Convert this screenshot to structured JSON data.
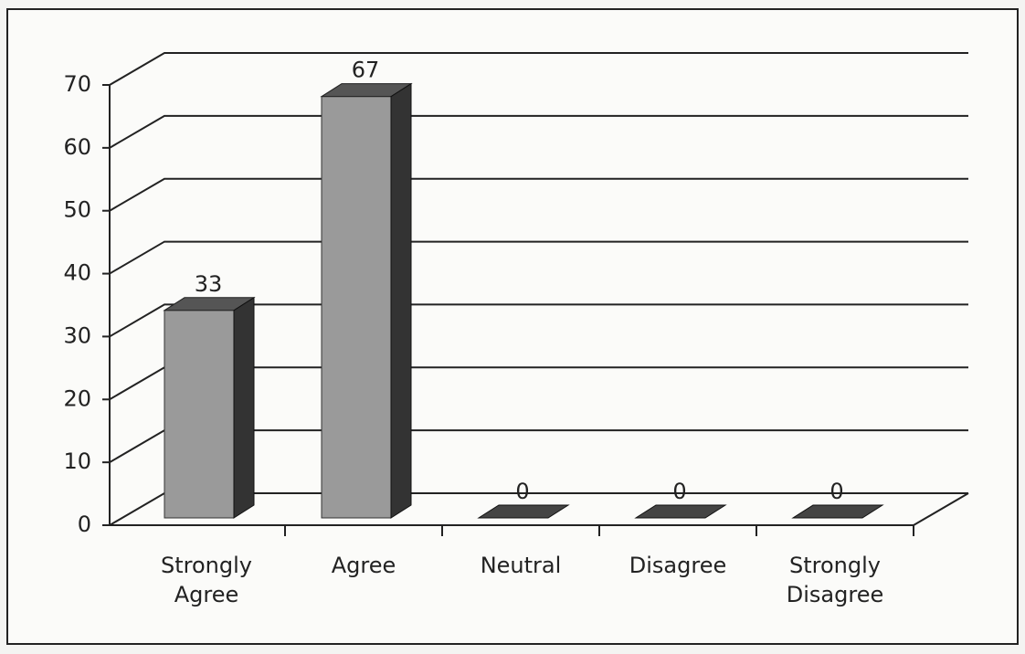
{
  "chart_data": {
    "type": "bar3d",
    "categories": [
      "Strongly Agree",
      "Agree",
      "Neutral",
      "Disagree",
      "Strongly Disagree"
    ],
    "values": [
      33,
      67,
      0,
      0,
      0
    ],
    "color": "#9a9a9a",
    "ylim": [
      0,
      70
    ],
    "yticks": [
      0,
      10,
      20,
      30,
      40,
      50,
      60,
      70
    ],
    "grid": true
  }
}
